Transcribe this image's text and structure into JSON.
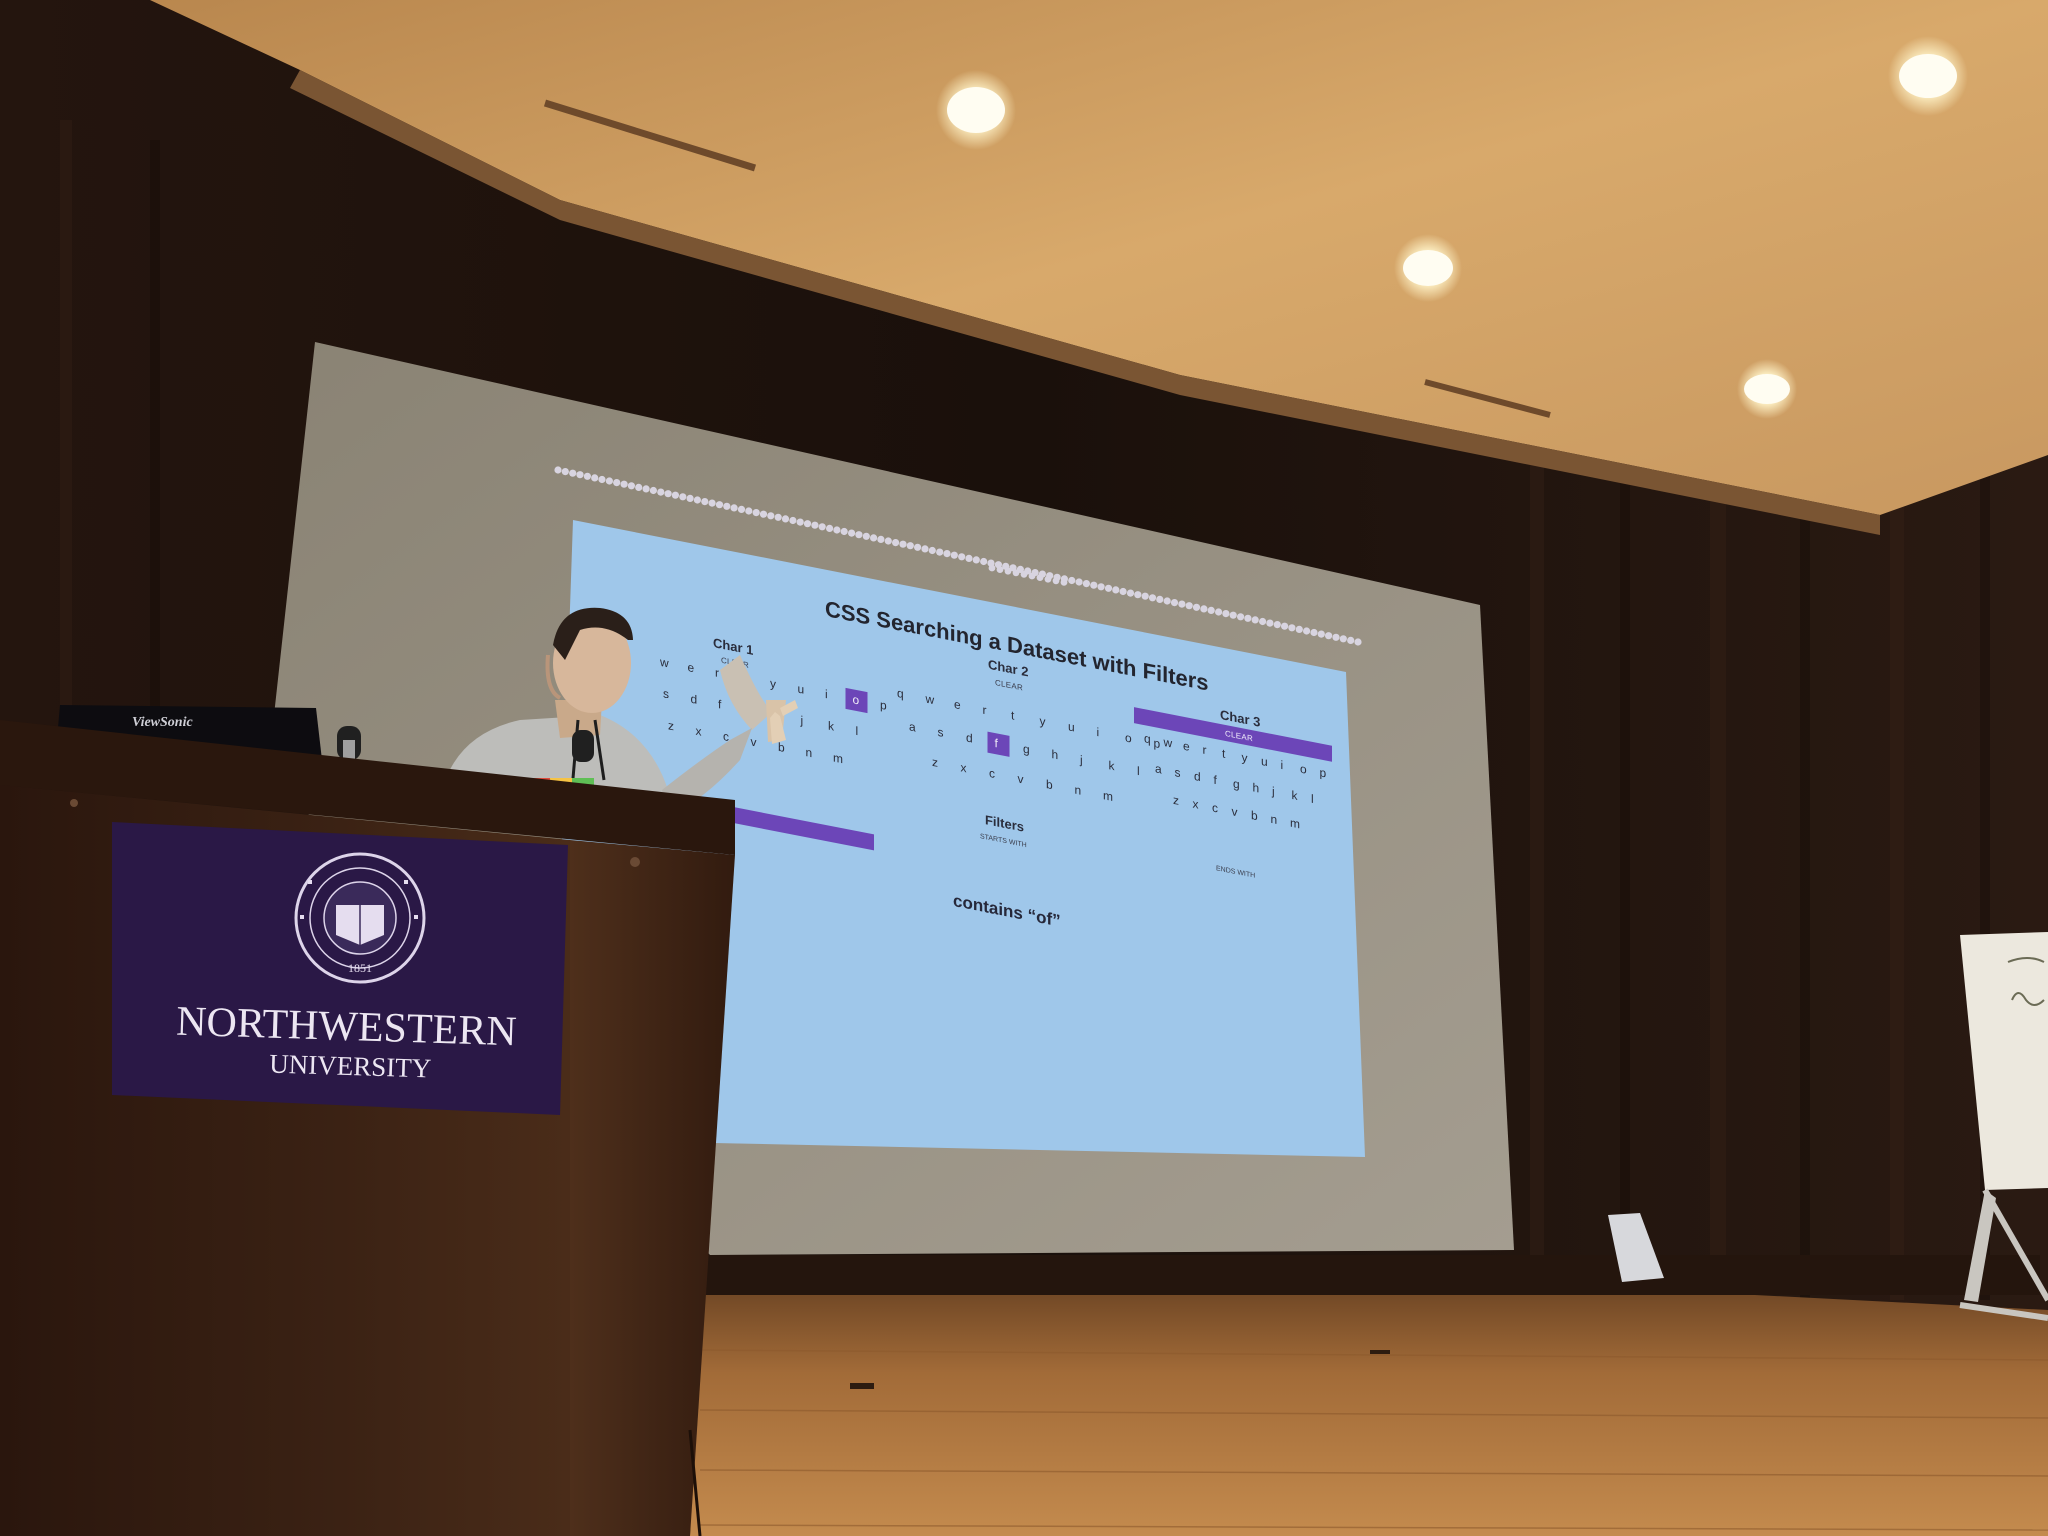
{
  "slide": {
    "title": "CSS Searching a Dataset with Filters",
    "char1": {
      "title": "Char 1",
      "clear": "CLEAR",
      "rows": [
        [
          "w",
          "e",
          "r",
          "t",
          "y",
          "u",
          "i",
          "o",
          "p"
        ],
        [
          "s",
          "d",
          "f",
          "g",
          "h",
          "j",
          "k",
          "l"
        ],
        [
          "z",
          "x",
          "c",
          "v",
          "b",
          "n",
          "m"
        ]
      ],
      "selected": "o"
    },
    "char2": {
      "title": "Char 2",
      "clear": "CLEAR",
      "rows": [
        [
          "q",
          "w",
          "e",
          "r",
          "t",
          "y",
          "u",
          "i",
          "o",
          "p"
        ],
        [
          "a",
          "s",
          "d",
          "f",
          "g",
          "h",
          "j",
          "k",
          "l"
        ],
        [
          "z",
          "x",
          "c",
          "v",
          "b",
          "n",
          "m"
        ]
      ],
      "selected": "f"
    },
    "char3": {
      "title": "Char 3",
      "clear": "CLEAR",
      "rows": [
        [
          "q",
          "w",
          "e",
          "r",
          "t",
          "y",
          "u",
          "i",
          "o",
          "p"
        ],
        [
          "a",
          "s",
          "d",
          "f",
          "g",
          "h",
          "j",
          "k",
          "l"
        ],
        [
          "z",
          "x",
          "c",
          "v",
          "b",
          "n",
          "m"
        ]
      ],
      "selected": null
    },
    "filters": {
      "title": "Filters",
      "starts_with": "STARTS WITH",
      "ends_with": "ENDS WITH"
    },
    "result": "contains “of”"
  },
  "lectern": {
    "seal_top": "NORTHWESTERN UNIVERSITY",
    "seal_motto": "QUAECUMQUE SUNT VERA",
    "seal_year": "1851",
    "name_line1": "NORTHWESTERN",
    "name_line2": "UNIVERSITY"
  },
  "monitor": {
    "brand": "ViewSonic"
  },
  "colors": {
    "slide_bg": "#9fc7ea",
    "accent_purple": "#6c46b8",
    "lectern_banner": "#2a1846",
    "ceiling": "#d9a86a",
    "stage_floor": "#b07a43"
  }
}
